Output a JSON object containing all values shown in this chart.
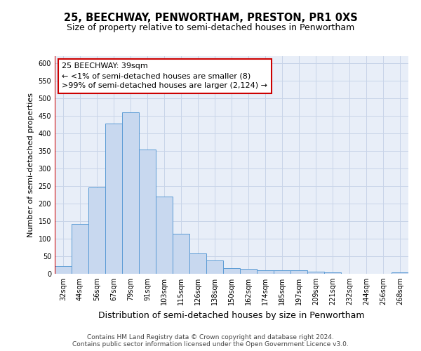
{
  "title": "25, BEECHWAY, PENWORTHAM, PRESTON, PR1 0XS",
  "subtitle": "Size of property relative to semi-detached houses in Penwortham",
  "xlabel": "Distribution of semi-detached houses by size in Penwortham",
  "ylabel": "Number of semi-detached properties",
  "footer_line1": "Contains HM Land Registry data © Crown copyright and database right 2024.",
  "footer_line2": "Contains public sector information licensed under the Open Government Licence v3.0.",
  "annotation_title": "25 BEECHWAY: 39sqm",
  "annotation_line2": "← <1% of semi-detached houses are smaller (8)",
  "annotation_line3": ">99% of semi-detached houses are larger (2,124) →",
  "bar_labels": [
    "32sqm",
    "44sqm",
    "56sqm",
    "67sqm",
    "79sqm",
    "91sqm",
    "103sqm",
    "115sqm",
    "126sqm",
    "138sqm",
    "150sqm",
    "162sqm",
    "174sqm",
    "185sqm",
    "197sqm",
    "209sqm",
    "221sqm",
    "232sqm",
    "244sqm",
    "256sqm",
    "268sqm"
  ],
  "bar_values": [
    22,
    142,
    246,
    428,
    460,
    355,
    220,
    115,
    58,
    38,
    17,
    15,
    11,
    11,
    10,
    6,
    4,
    1,
    1,
    0,
    4
  ],
  "bar_color": "#c8d8ef",
  "bar_edge_color": "#5b9bd5",
  "vline_color": "#cc0000",
  "annotation_box_color": "#ffffff",
  "annotation_box_edge": "#cc0000",
  "ylim_max": 620,
  "yticks": [
    0,
    50,
    100,
    150,
    200,
    250,
    300,
    350,
    400,
    450,
    500,
    550,
    600
  ],
  "grid_color": "#c8d4e8",
  "bg_color": "#ffffff",
  "plot_bg_color": "#e8eef8",
  "title_fontsize": 10.5,
  "subtitle_fontsize": 9,
  "xlabel_fontsize": 9,
  "ylabel_fontsize": 8,
  "tick_fontsize": 7,
  "annotation_fontsize": 8,
  "footer_fontsize": 6.5
}
